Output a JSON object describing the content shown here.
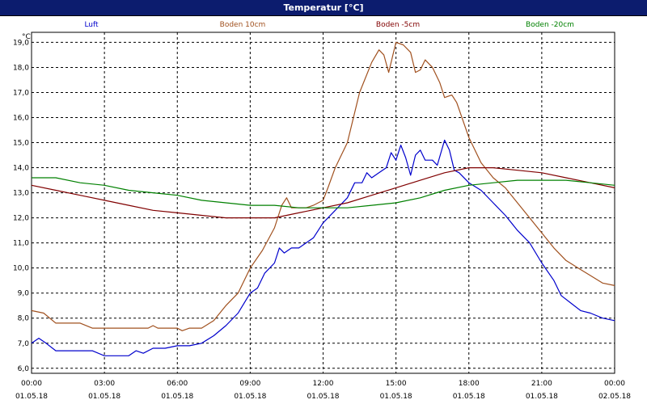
{
  "window": {
    "title": "Temperatur [°C]"
  },
  "chart_data": {
    "type": "line",
    "title": "Temperatur [°C]",
    "ylabel": "°C",
    "ylim": [
      5.8,
      19.4
    ],
    "yticks": [
      "19,0",
      "18,0",
      "17,0",
      "16,0",
      "15,0",
      "14,0",
      "13,0",
      "12,0",
      "11,0",
      "10,0",
      "9,0",
      "8,0",
      "7,0",
      "6,0"
    ],
    "ytick_values": [
      19,
      18,
      17,
      16,
      15,
      14,
      13,
      12,
      11,
      10,
      9,
      8,
      7,
      6
    ],
    "xlim_hours": [
      0,
      24
    ],
    "xtick_hours": [
      0,
      3,
      6,
      9,
      12,
      15,
      18,
      21,
      24
    ],
    "xtick_times": [
      "00:00",
      "03:00",
      "06:00",
      "09:00",
      "12:00",
      "15:00",
      "18:00",
      "21:00",
      "00:00"
    ],
    "xtick_dates": [
      "01.05.18",
      "01.05.18",
      "01.05.18",
      "01.05.18",
      "01.05.18",
      "01.05.18",
      "01.05.18",
      "01.05.18",
      "02.05.18"
    ],
    "grid": true,
    "legend_position": "top",
    "series": [
      {
        "name": "Luft",
        "color": "#0000cc",
        "points": [
          [
            0.0,
            7.0
          ],
          [
            0.3,
            7.2
          ],
          [
            0.6,
            7.0
          ],
          [
            1.0,
            6.7
          ],
          [
            1.5,
            6.7
          ],
          [
            2.0,
            6.7
          ],
          [
            2.5,
            6.7
          ],
          [
            3.0,
            6.5
          ],
          [
            3.5,
            6.5
          ],
          [
            4.0,
            6.5
          ],
          [
            4.3,
            6.7
          ],
          [
            4.6,
            6.6
          ],
          [
            5.0,
            6.8
          ],
          [
            5.5,
            6.8
          ],
          [
            6.0,
            6.9
          ],
          [
            6.5,
            6.9
          ],
          [
            7.0,
            7.0
          ],
          [
            7.5,
            7.3
          ],
          [
            8.0,
            7.7
          ],
          [
            8.5,
            8.2
          ],
          [
            9.0,
            9.0
          ],
          [
            9.3,
            9.2
          ],
          [
            9.6,
            9.8
          ],
          [
            10.0,
            10.2
          ],
          [
            10.2,
            10.8
          ],
          [
            10.4,
            10.6
          ],
          [
            10.7,
            10.8
          ],
          [
            11.0,
            10.8
          ],
          [
            11.3,
            11.0
          ],
          [
            11.6,
            11.2
          ],
          [
            12.0,
            11.8
          ],
          [
            12.5,
            12.3
          ],
          [
            13.0,
            12.8
          ],
          [
            13.3,
            13.4
          ],
          [
            13.6,
            13.4
          ],
          [
            13.8,
            13.8
          ],
          [
            14.0,
            13.6
          ],
          [
            14.3,
            13.8
          ],
          [
            14.6,
            14.0
          ],
          [
            14.8,
            14.6
          ],
          [
            15.0,
            14.3
          ],
          [
            15.2,
            14.9
          ],
          [
            15.4,
            14.4
          ],
          [
            15.6,
            13.7
          ],
          [
            15.8,
            14.5
          ],
          [
            16.0,
            14.7
          ],
          [
            16.2,
            14.3
          ],
          [
            16.5,
            14.3
          ],
          [
            16.7,
            14.1
          ],
          [
            17.0,
            15.1
          ],
          [
            17.2,
            14.7
          ],
          [
            17.4,
            13.9
          ],
          [
            17.6,
            13.8
          ],
          [
            18.0,
            13.4
          ],
          [
            18.5,
            13.1
          ],
          [
            19.0,
            12.6
          ],
          [
            19.5,
            12.1
          ],
          [
            20.0,
            11.5
          ],
          [
            20.5,
            11.0
          ],
          [
            21.0,
            10.2
          ],
          [
            21.5,
            9.5
          ],
          [
            21.8,
            8.9
          ],
          [
            22.2,
            8.6
          ],
          [
            22.6,
            8.3
          ],
          [
            23.0,
            8.2
          ],
          [
            23.5,
            8.0
          ],
          [
            24.0,
            7.9
          ]
        ]
      },
      {
        "name": "Boden 10cm",
        "color": "#a0501e",
        "points": [
          [
            0.0,
            8.3
          ],
          [
            0.5,
            8.2
          ],
          [
            1.0,
            7.8
          ],
          [
            1.5,
            7.8
          ],
          [
            2.0,
            7.8
          ],
          [
            2.5,
            7.6
          ],
          [
            3.0,
            7.6
          ],
          [
            4.0,
            7.6
          ],
          [
            4.8,
            7.6
          ],
          [
            5.0,
            7.7
          ],
          [
            5.2,
            7.6
          ],
          [
            5.5,
            7.6
          ],
          [
            6.0,
            7.6
          ],
          [
            6.2,
            7.5
          ],
          [
            6.5,
            7.6
          ],
          [
            7.0,
            7.6
          ],
          [
            7.5,
            7.9
          ],
          [
            8.0,
            8.5
          ],
          [
            8.5,
            9.0
          ],
          [
            9.0,
            10.0
          ],
          [
            9.5,
            10.7
          ],
          [
            10.0,
            11.6
          ],
          [
            10.3,
            12.5
          ],
          [
            10.5,
            12.8
          ],
          [
            10.7,
            12.4
          ],
          [
            11.0,
            12.4
          ],
          [
            11.3,
            12.4
          ],
          [
            11.6,
            12.5
          ],
          [
            12.0,
            12.7
          ],
          [
            12.2,
            13.2
          ],
          [
            12.5,
            14.0
          ],
          [
            13.0,
            15.0
          ],
          [
            13.5,
            17.0
          ],
          [
            14.0,
            18.2
          ],
          [
            14.3,
            18.7
          ],
          [
            14.5,
            18.5
          ],
          [
            14.7,
            17.8
          ],
          [
            15.0,
            19.0
          ],
          [
            15.3,
            18.9
          ],
          [
            15.6,
            18.6
          ],
          [
            15.8,
            17.8
          ],
          [
            16.0,
            17.9
          ],
          [
            16.2,
            18.3
          ],
          [
            16.5,
            18.0
          ],
          [
            16.8,
            17.4
          ],
          [
            17.0,
            16.8
          ],
          [
            17.3,
            16.9
          ],
          [
            17.5,
            16.6
          ],
          [
            18.0,
            15.2
          ],
          [
            18.5,
            14.2
          ],
          [
            19.0,
            13.6
          ],
          [
            19.5,
            13.2
          ],
          [
            20.0,
            12.6
          ],
          [
            20.5,
            12.0
          ],
          [
            21.0,
            11.4
          ],
          [
            21.5,
            10.8
          ],
          [
            22.0,
            10.3
          ],
          [
            22.5,
            10.0
          ],
          [
            23.0,
            9.7
          ],
          [
            23.5,
            9.4
          ],
          [
            24.0,
            9.3
          ]
        ]
      },
      {
        "name": "Boden -5cm",
        "color": "#800000",
        "points": [
          [
            0.0,
            13.3
          ],
          [
            1.0,
            13.1
          ],
          [
            2.0,
            12.9
          ],
          [
            3.0,
            12.7
          ],
          [
            4.0,
            12.5
          ],
          [
            5.0,
            12.3
          ],
          [
            6.0,
            12.2
          ],
          [
            7.0,
            12.1
          ],
          [
            8.0,
            12.0
          ],
          [
            9.0,
            12.0
          ],
          [
            10.0,
            12.0
          ],
          [
            11.0,
            12.2
          ],
          [
            12.0,
            12.4
          ],
          [
            13.0,
            12.6
          ],
          [
            14.0,
            12.9
          ],
          [
            15.0,
            13.2
          ],
          [
            16.0,
            13.5
          ],
          [
            17.0,
            13.8
          ],
          [
            18.0,
            14.0
          ],
          [
            19.0,
            14.0
          ],
          [
            20.0,
            13.9
          ],
          [
            21.0,
            13.8
          ],
          [
            22.0,
            13.6
          ],
          [
            23.0,
            13.4
          ],
          [
            24.0,
            13.2
          ]
        ]
      },
      {
        "name": "Boden -20cm",
        "color": "#008000",
        "points": [
          [
            0.0,
            13.6
          ],
          [
            1.0,
            13.6
          ],
          [
            2.0,
            13.4
          ],
          [
            3.0,
            13.3
          ],
          [
            4.0,
            13.1
          ],
          [
            5.0,
            13.0
          ],
          [
            6.0,
            12.9
          ],
          [
            7.0,
            12.7
          ],
          [
            8.0,
            12.6
          ],
          [
            9.0,
            12.5
          ],
          [
            10.0,
            12.5
          ],
          [
            11.0,
            12.4
          ],
          [
            12.0,
            12.4
          ],
          [
            13.0,
            12.4
          ],
          [
            14.0,
            12.5
          ],
          [
            15.0,
            12.6
          ],
          [
            16.0,
            12.8
          ],
          [
            17.0,
            13.1
          ],
          [
            18.0,
            13.3
          ],
          [
            19.0,
            13.4
          ],
          [
            20.0,
            13.5
          ],
          [
            21.0,
            13.5
          ],
          [
            22.0,
            13.5
          ],
          [
            23.0,
            13.4
          ],
          [
            24.0,
            13.3
          ]
        ]
      }
    ]
  }
}
